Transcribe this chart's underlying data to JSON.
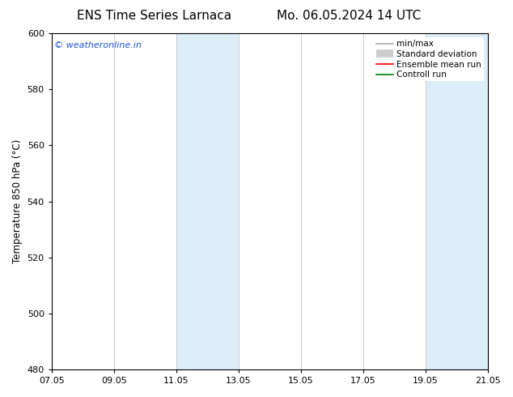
{
  "title_left": "ENS Time Series Larnaca",
  "title_right": "Mo. 06.05.2024 14 UTC",
  "ylabel": "Temperature 850 hPa (°C)",
  "ylim": [
    480,
    600
  ],
  "yticks": [
    480,
    500,
    520,
    540,
    560,
    580,
    600
  ],
  "xtick_labels": [
    "07.05",
    "09.05",
    "11.05",
    "13.05",
    "15.05",
    "17.05",
    "19.05",
    "21.05"
  ],
  "xtick_positions": [
    0,
    2,
    4,
    6,
    8,
    10,
    12,
    14
  ],
  "shaded_regions": [
    {
      "xstart": 4,
      "xend": 6,
      "color": "#ddeef8"
    },
    {
      "xstart": 12,
      "xend": 14,
      "color": "#ddeef8"
    }
  ],
  "watermark_text": "© weatheronline.in",
  "watermark_color": "#1a56db",
  "legend_items": [
    {
      "label": "min/max",
      "color": "#aaaaaa",
      "lw": 1.2,
      "style": "solid"
    },
    {
      "label": "Standard deviation",
      "color": "#cccccc",
      "lw": 7,
      "style": "solid"
    },
    {
      "label": "Ensemble mean run",
      "color": "red",
      "lw": 1.2,
      "style": "solid"
    },
    {
      "label": "Controll run",
      "color": "green",
      "lw": 1.2,
      "style": "solid"
    }
  ],
  "background_color": "#ffffff",
  "title_fontsize": 11,
  "axis_fontsize": 8.5,
  "tick_fontsize": 8,
  "legend_fontsize": 7.5
}
